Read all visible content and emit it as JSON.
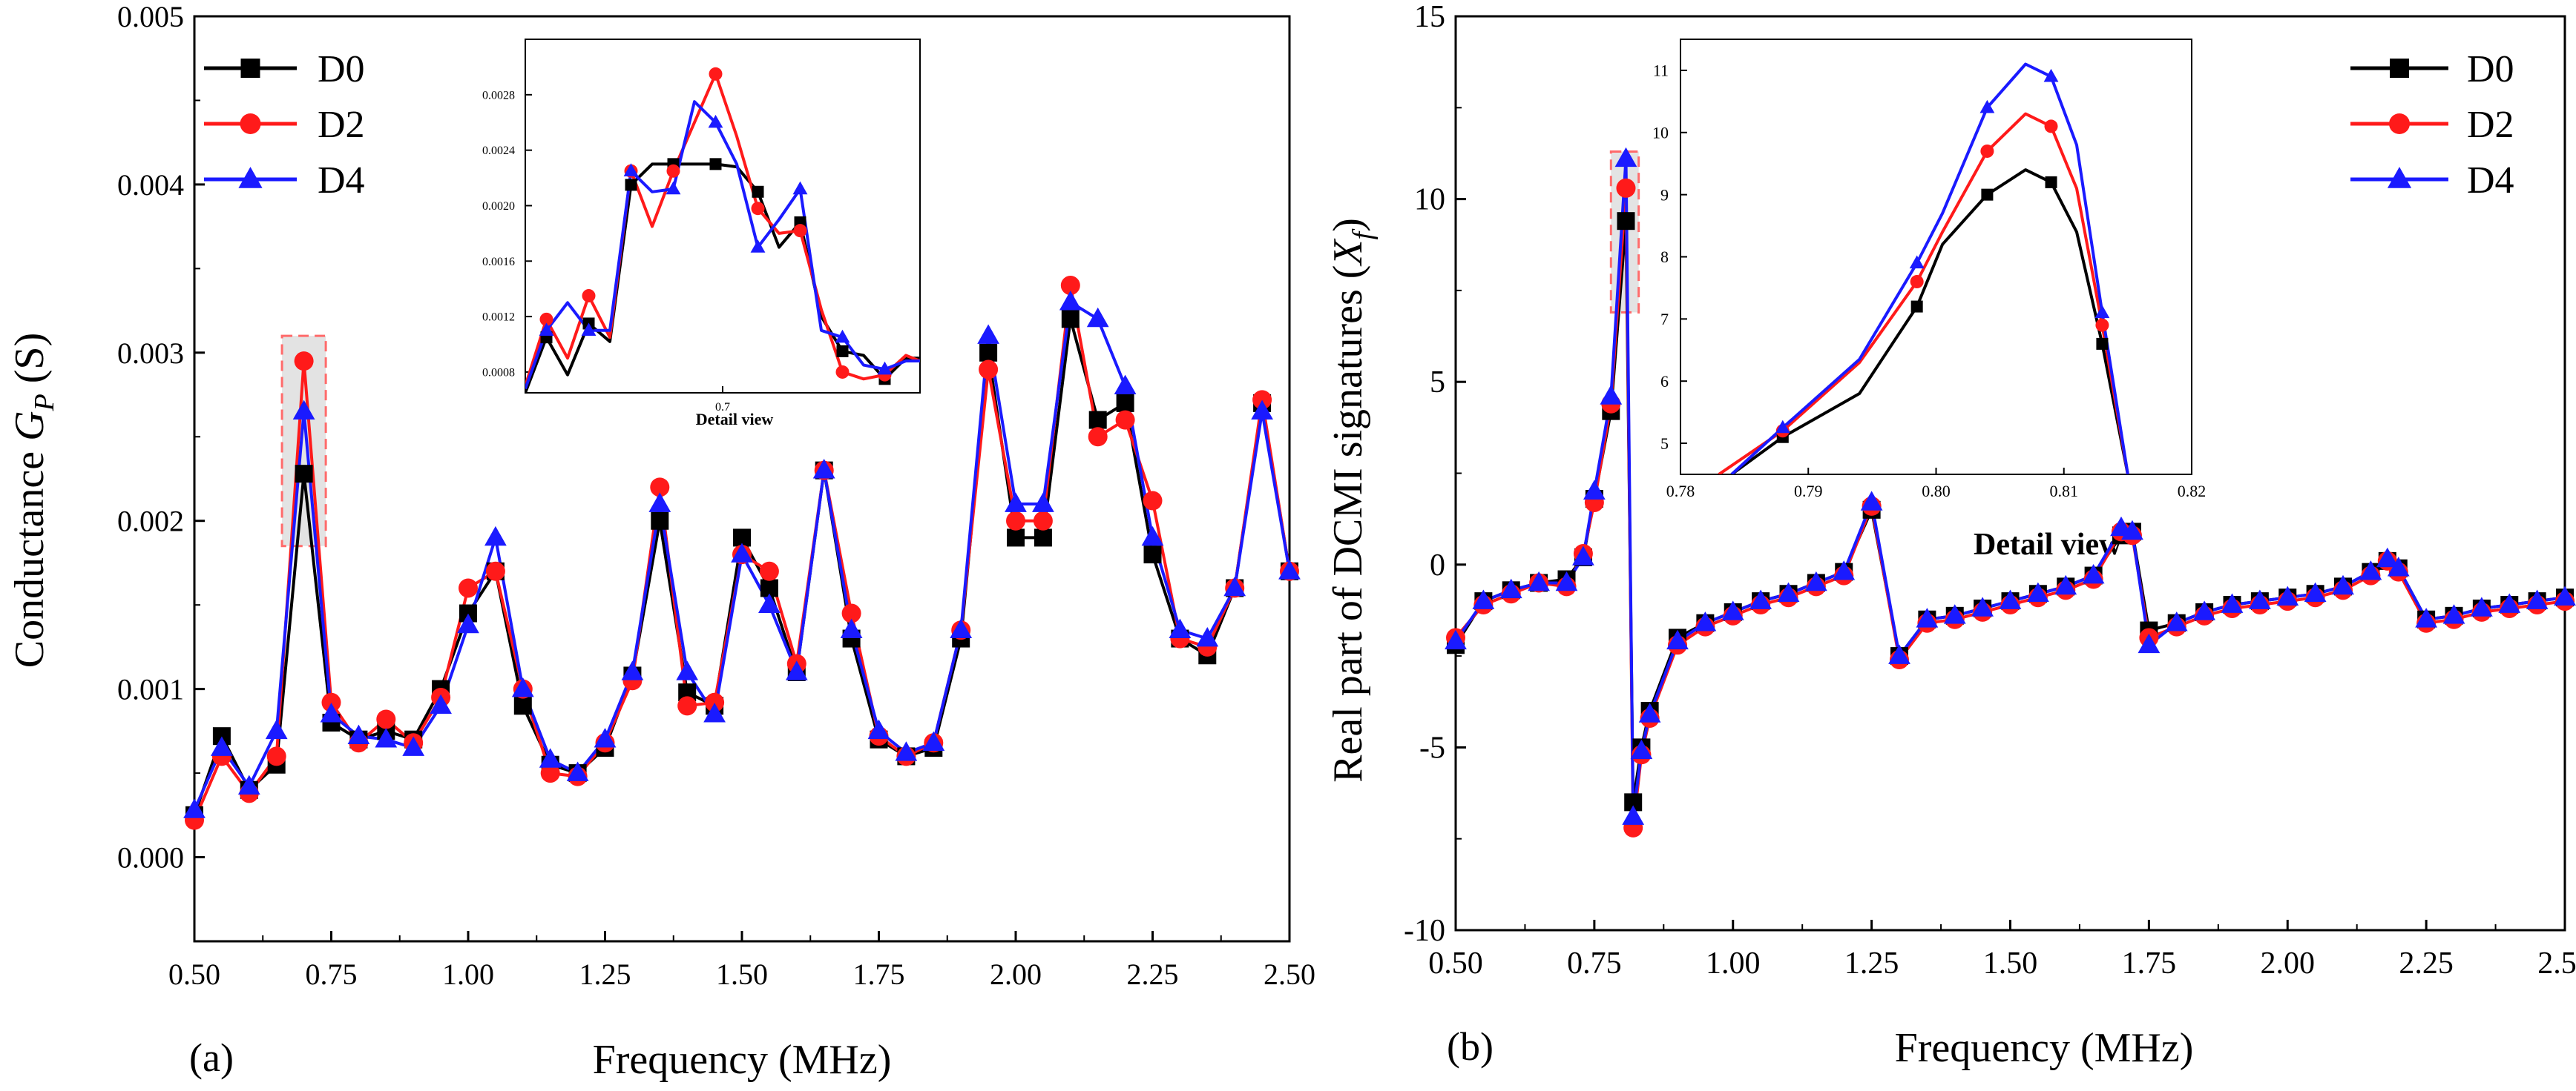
{
  "chart_data": [
    {
      "type": "line",
      "panel_label": "(a)",
      "xlabel": "Frequency (MHz)",
      "ylabel_main": "Conductance ",
      "ylabel_var": "G",
      "ylabel_sub": "P",
      "ylabel_unit": " (S)",
      "xlim": [
        0.5,
        2.5
      ],
      "ylim": [
        -0.0005,
        0.005
      ],
      "xticks": [
        "0.50",
        "0.75",
        "1.00",
        "1.25",
        "1.50",
        "1.75",
        "2.00",
        "2.25",
        "2.50"
      ],
      "yticks": [
        "0.000",
        "0.001",
        "0.002",
        "0.003",
        "0.004",
        "0.005"
      ],
      "xtick_values": [
        0.5,
        0.75,
        1.0,
        1.25,
        1.5,
        1.75,
        2.0,
        2.25,
        2.5
      ],
      "ytick_values": [
        0,
        0.001,
        0.002,
        0.003,
        0.004,
        0.005
      ],
      "legend": [
        "D0",
        "D2",
        "D4"
      ],
      "colors": [
        "#000000",
        "#ff1a1a",
        "#1a1aff"
      ],
      "markers": [
        "square",
        "circle",
        "triangle"
      ],
      "highlight_region": {
        "x": [
          0.66,
          0.74
        ],
        "y": [
          0.00185,
          0.0031
        ]
      },
      "series": [
        {
          "name": "D0",
          "x": [
            0.5,
            0.55,
            0.6,
            0.65,
            0.7,
            0.75,
            0.8,
            0.85,
            0.9,
            0.95,
            1.0,
            1.05,
            1.1,
            1.15,
            1.2,
            1.25,
            1.3,
            1.35,
            1.4,
            1.45,
            1.5,
            1.55,
            1.6,
            1.65,
            1.7,
            1.75,
            1.8,
            1.85,
            1.9,
            1.95,
            2.0,
            2.05,
            2.1,
            2.15,
            2.2,
            2.25,
            2.3,
            2.35,
            2.4,
            2.45,
            2.5
          ],
          "y": [
            0.00025,
            0.00072,
            0.0004,
            0.00055,
            0.00228,
            0.0008,
            0.0007,
            0.00075,
            0.0007,
            0.001,
            0.00145,
            0.0017,
            0.0009,
            0.00055,
            0.0005,
            0.00065,
            0.00108,
            0.002,
            0.00098,
            0.0009,
            0.0019,
            0.0016,
            0.0011,
            0.0023,
            0.0013,
            0.0007,
            0.0006,
            0.00065,
            0.0013,
            0.003,
            0.0019,
            0.0019,
            0.0032,
            0.0026,
            0.0027,
            0.0018,
            0.0013,
            0.0012,
            0.0016,
            0.0027,
            0.0017
          ]
        },
        {
          "name": "D2",
          "x": [
            0.5,
            0.55,
            0.6,
            0.65,
            0.7,
            0.75,
            0.8,
            0.85,
            0.9,
            0.95,
            1.0,
            1.05,
            1.1,
            1.15,
            1.2,
            1.25,
            1.3,
            1.35,
            1.4,
            1.45,
            1.5,
            1.55,
            1.6,
            1.65,
            1.7,
            1.75,
            1.8,
            1.85,
            1.9,
            1.95,
            2.0,
            2.05,
            2.1,
            2.15,
            2.2,
            2.25,
            2.3,
            2.35,
            2.4,
            2.45,
            2.5
          ],
          "y": [
            0.00022,
            0.0006,
            0.00038,
            0.0006,
            0.00295,
            0.00092,
            0.00068,
            0.00082,
            0.00068,
            0.00095,
            0.0016,
            0.0017,
            0.001,
            0.0005,
            0.00048,
            0.00068,
            0.00105,
            0.0022,
            0.0009,
            0.00092,
            0.0018,
            0.0017,
            0.00115,
            0.0023,
            0.00145,
            0.00072,
            0.0006,
            0.00068,
            0.00135,
            0.0029,
            0.002,
            0.002,
            0.0034,
            0.0025,
            0.0026,
            0.00212,
            0.0013,
            0.00125,
            0.0016,
            0.00272,
            0.0017
          ]
        },
        {
          "name": "D4",
          "x": [
            0.5,
            0.55,
            0.6,
            0.65,
            0.7,
            0.75,
            0.8,
            0.85,
            0.9,
            0.95,
            1.0,
            1.05,
            1.1,
            1.15,
            1.2,
            1.25,
            1.3,
            1.35,
            1.4,
            1.45,
            1.5,
            1.55,
            1.6,
            1.65,
            1.7,
            1.75,
            1.8,
            1.85,
            1.9,
            1.95,
            2.0,
            2.05,
            2.1,
            2.15,
            2.2,
            2.25,
            2.3,
            2.35,
            2.4,
            2.45,
            2.5
          ],
          "y": [
            0.00028,
            0.00065,
            0.00042,
            0.00075,
            0.00265,
            0.00085,
            0.00072,
            0.0007,
            0.00065,
            0.0009,
            0.00138,
            0.0019,
            0.001,
            0.00058,
            0.0005,
            0.0007,
            0.0011,
            0.0021,
            0.0011,
            0.00085,
            0.0018,
            0.0015,
            0.0011,
            0.0023,
            0.00135,
            0.00075,
            0.00062,
            0.00068,
            0.00135,
            0.0031,
            0.0021,
            0.0021,
            0.0033,
            0.0032,
            0.0028,
            0.0019,
            0.00135,
            0.0013,
            0.0016,
            0.00265,
            0.0017
          ]
        }
      ],
      "inset": {
        "xlabel": "Detail view",
        "xlim": [
          0.672,
          0.728
        ],
        "ylim": [
          0.00065,
          0.0032
        ],
        "xticks": [
          "0.7"
        ],
        "xtick_values": [
          0.7
        ],
        "yticks": [
          "0.0008",
          "0.0012",
          "0.0016",
          "0.0020",
          "0.0024",
          "0.0028"
        ],
        "ytick_values": [
          0.0008,
          0.0012,
          0.0016,
          0.002,
          0.0024,
          0.0028
        ],
        "series": [
          {
            "name": "D0",
            "x": [
              0.672,
              0.675,
              0.678,
              0.681,
              0.684,
              0.687,
              0.69,
              0.693,
              0.696,
              0.699,
              0.702,
              0.705,
              0.708,
              0.711,
              0.714,
              0.717,
              0.72,
              0.723,
              0.726,
              0.728
            ],
            "y": [
              0.00065,
              0.00105,
              0.00078,
              0.00115,
              0.00102,
              0.00215,
              0.0023,
              0.0023,
              0.0023,
              0.0023,
              0.00228,
              0.0021,
              0.0017,
              0.00188,
              0.0012,
              0.00095,
              0.00092,
              0.00075,
              0.0009,
              0.0009
            ]
          },
          {
            "name": "D2",
            "x": [
              0.672,
              0.675,
              0.678,
              0.681,
              0.684,
              0.687,
              0.69,
              0.693,
              0.696,
              0.699,
              0.702,
              0.705,
              0.708,
              0.711,
              0.714,
              0.717,
              0.72,
              0.723,
              0.726,
              0.728
            ],
            "y": [
              0.0007,
              0.00118,
              0.0009,
              0.00135,
              0.00105,
              0.00225,
              0.00185,
              0.00225,
              0.0026,
              0.00295,
              0.0025,
              0.00198,
              0.0018,
              0.00182,
              0.00125,
              0.0008,
              0.00075,
              0.00078,
              0.00092,
              0.00088
            ]
          },
          {
            "name": "D4",
            "x": [
              0.672,
              0.675,
              0.678,
              0.681,
              0.684,
              0.687,
              0.69,
              0.693,
              0.696,
              0.699,
              0.702,
              0.705,
              0.708,
              0.711,
              0.714,
              0.717,
              0.72,
              0.723,
              0.726,
              0.728
            ],
            "y": [
              0.00068,
              0.0011,
              0.0013,
              0.0011,
              0.0011,
              0.00225,
              0.0021,
              0.00212,
              0.00275,
              0.0026,
              0.0023,
              0.0017,
              0.0019,
              0.00212,
              0.0011,
              0.00105,
              0.00085,
              0.00082,
              0.00088,
              0.00088
            ]
          }
        ]
      }
    },
    {
      "type": "line",
      "panel_label": "(b)",
      "xlabel": "Frequency (MHz)",
      "ylabel_main": "Real part of DCMI signatures (",
      "ylabel_var": "X",
      "ylabel_sub": "f",
      "ylabel_unit": ")",
      "xlim": [
        0.5,
        2.5
      ],
      "ylim": [
        -10,
        15
      ],
      "xticks": [
        "0.50",
        "0.75",
        "1.00",
        "1.25",
        "1.50",
        "1.75",
        "2.00",
        "2.25",
        "2.50"
      ],
      "yticks": [
        "-10",
        "-5",
        "0",
        "5",
        "10",
        "15"
      ],
      "xtick_values": [
        0.5,
        0.75,
        1.0,
        1.25,
        1.5,
        1.75,
        2.0,
        2.25,
        2.5
      ],
      "ytick_values": [
        -10,
        -5,
        0,
        5,
        10,
        15
      ],
      "legend": [
        "D0",
        "D2",
        "D4"
      ],
      "colors": [
        "#000000",
        "#ff1a1a",
        "#1a1aff"
      ],
      "markers": [
        "square",
        "circle",
        "triangle"
      ],
      "highlight_region": {
        "x": [
          0.78,
          0.83
        ],
        "y": [
          6.9,
          11.3
        ]
      },
      "series": [
        {
          "name": "D0",
          "x": [
            0.5,
            0.55,
            0.6,
            0.65,
            0.7,
            0.73,
            0.75,
            0.78,
            0.807,
            0.82,
            0.835,
            0.85,
            0.9,
            0.95,
            1.0,
            1.05,
            1.1,
            1.15,
            1.2,
            1.25,
            1.3,
            1.35,
            1.4,
            1.45,
            1.5,
            1.55,
            1.6,
            1.65,
            1.7,
            1.72,
            1.75,
            1.8,
            1.85,
            1.9,
            1.95,
            2.0,
            2.05,
            2.1,
            2.15,
            2.18,
            2.2,
            2.25,
            2.3,
            2.35,
            2.4,
            2.45,
            2.5
          ],
          "y": [
            -2.2,
            -1.0,
            -0.7,
            -0.5,
            -0.4,
            0.2,
            1.8,
            4.2,
            9.4,
            -6.5,
            -5.0,
            -4.0,
            -2.0,
            -1.6,
            -1.3,
            -1.0,
            -0.8,
            -0.5,
            -0.2,
            1.5,
            -2.5,
            -1.5,
            -1.4,
            -1.2,
            -1.0,
            -0.8,
            -0.6,
            -0.3,
            0.8,
            0.9,
            -1.8,
            -1.6,
            -1.3,
            -1.1,
            -1.0,
            -0.9,
            -0.8,
            -0.6,
            -0.2,
            0.1,
            -0.1,
            -1.5,
            -1.4,
            -1.2,
            -1.1,
            -1.0,
            -0.9
          ]
        },
        {
          "name": "D2",
          "x": [
            0.5,
            0.55,
            0.6,
            0.65,
            0.7,
            0.73,
            0.75,
            0.78,
            0.807,
            0.82,
            0.835,
            0.85,
            0.9,
            0.95,
            1.0,
            1.05,
            1.1,
            1.15,
            1.2,
            1.25,
            1.3,
            1.35,
            1.4,
            1.45,
            1.5,
            1.55,
            1.6,
            1.65,
            1.7,
            1.72,
            1.75,
            1.8,
            1.85,
            1.9,
            1.95,
            2.0,
            2.05,
            2.1,
            2.15,
            2.18,
            2.2,
            2.25,
            2.3,
            2.35,
            2.4,
            2.45,
            2.5
          ],
          "y": [
            -2.0,
            -1.1,
            -0.8,
            -0.5,
            -0.6,
            0.3,
            1.7,
            4.4,
            10.3,
            -7.2,
            -5.2,
            -4.2,
            -2.2,
            -1.7,
            -1.4,
            -1.1,
            -0.9,
            -0.6,
            -0.3,
            1.6,
            -2.6,
            -1.6,
            -1.5,
            -1.3,
            -1.1,
            -0.9,
            -0.7,
            -0.4,
            0.9,
            0.8,
            -2.0,
            -1.7,
            -1.4,
            -1.2,
            -1.1,
            -1.0,
            -0.9,
            -0.7,
            -0.3,
            0.1,
            -0.2,
            -1.6,
            -1.5,
            -1.3,
            -1.2,
            -1.1,
            -1.0
          ]
        },
        {
          "name": "D4",
          "x": [
            0.5,
            0.55,
            0.6,
            0.65,
            0.7,
            0.73,
            0.75,
            0.78,
            0.807,
            0.82,
            0.835,
            0.85,
            0.9,
            0.95,
            1.0,
            1.05,
            1.1,
            1.15,
            1.2,
            1.25,
            1.3,
            1.35,
            1.4,
            1.45,
            1.5,
            1.55,
            1.6,
            1.65,
            1.7,
            1.72,
            1.75,
            1.8,
            1.85,
            1.9,
            1.95,
            2.0,
            2.05,
            2.1,
            2.15,
            2.18,
            2.2,
            2.25,
            2.3,
            2.35,
            2.4,
            2.45,
            2.5
          ],
          "y": [
            -2.1,
            -1.0,
            -0.7,
            -0.5,
            -0.5,
            0.2,
            2.0,
            4.6,
            11.1,
            -6.9,
            -5.1,
            -4.1,
            -2.1,
            -1.6,
            -1.3,
            -1.0,
            -0.8,
            -0.5,
            -0.2,
            1.7,
            -2.5,
            -1.5,
            -1.4,
            -1.2,
            -1.0,
            -0.8,
            -0.6,
            -0.3,
            1.0,
            0.9,
            -2.2,
            -1.6,
            -1.3,
            -1.1,
            -1.0,
            -0.9,
            -0.8,
            -0.6,
            -0.2,
            0.15,
            -0.1,
            -1.5,
            -1.4,
            -1.2,
            -1.1,
            -1.0,
            -0.9
          ]
        }
      ],
      "inset": {
        "xlabel": "Detail view",
        "xlim": [
          0.78,
          0.82
        ],
        "ylim": [
          4.5,
          11.5
        ],
        "xticks": [
          "0.78",
          "0.79",
          "0.80",
          "0.81",
          "0.82"
        ],
        "xtick_values": [
          0.78,
          0.79,
          0.8,
          0.81,
          0.82
        ],
        "yticks": [
          "5",
          "6",
          "7",
          "8",
          "9",
          "10",
          "11"
        ],
        "ytick_values": [
          5,
          6,
          7,
          8,
          9,
          10,
          11
        ],
        "series": [
          {
            "name": "D0",
            "x": [
              0.784,
              0.788,
              0.794,
              0.7985,
              0.8005,
              0.804,
              0.807,
              0.809,
              0.811,
              0.813,
              0.815
            ],
            "y": [
              4.5,
              5.1,
              5.8,
              7.2,
              8.2,
              9.0,
              9.4,
              9.2,
              8.4,
              6.6,
              4.5
            ]
          },
          {
            "name": "D2",
            "x": [
              0.783,
              0.788,
              0.794,
              0.7985,
              0.8005,
              0.804,
              0.807,
              0.809,
              0.811,
              0.813,
              0.815
            ],
            "y": [
              4.5,
              5.2,
              6.3,
              7.6,
              8.4,
              9.7,
              10.3,
              10.1,
              9.1,
              6.9,
              4.5
            ]
          },
          {
            "name": "D4",
            "x": [
              0.784,
              0.788,
              0.794,
              0.7985,
              0.8005,
              0.804,
              0.807,
              0.809,
              0.811,
              0.813,
              0.815
            ],
            "y": [
              4.5,
              5.25,
              6.35,
              7.9,
              8.7,
              10.4,
              11.1,
              10.9,
              9.8,
              7.1,
              4.5
            ]
          }
        ]
      }
    }
  ]
}
